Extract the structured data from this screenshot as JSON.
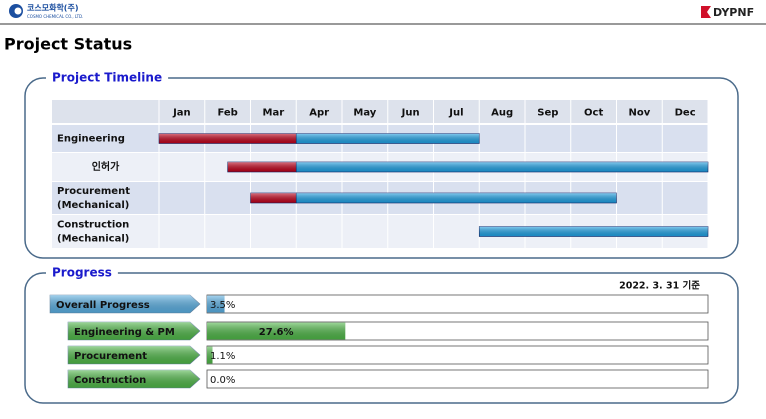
{
  "header": {
    "company": "코스모화학(주)",
    "company_en": "COSMO CHEMICAL CO., LTD.",
    "brand": "DYPNF"
  },
  "title": "Project Status",
  "timeline": {
    "heading": "Project Timeline",
    "months": [
      "Jan",
      "Feb",
      "Mar",
      "Apr",
      "May",
      "Jun",
      "Jul",
      "Aug",
      "Sep",
      "Oct",
      "Nov",
      "Dec"
    ],
    "rows": [
      {
        "label": [
          "Engineering"
        ],
        "bars": [
          {
            "start": 0,
            "end": 3,
            "color": "#c0001a"
          },
          {
            "start": 3,
            "end": 7,
            "color": "#1ea2e6"
          }
        ]
      },
      {
        "label": [
          "인허가"
        ],
        "bars": [
          {
            "start": 1.5,
            "end": 3,
            "color": "#c0001a"
          },
          {
            "start": 3,
            "end": 12,
            "color": "#1ea2e6"
          }
        ]
      },
      {
        "label": [
          "Procurement",
          "(Mechanical)"
        ],
        "bars": [
          {
            "start": 2,
            "end": 3,
            "color": "#c0001a"
          },
          {
            "start": 3,
            "end": 10,
            "color": "#1ea2e6"
          }
        ]
      },
      {
        "label": [
          "Construction",
          "(Mechanical)"
        ],
        "bars": [
          {
            "start": 7,
            "end": 12,
            "color": "#1ea2e6"
          }
        ]
      }
    ]
  },
  "progress": {
    "heading": "Progress",
    "as_of": "2022. 3. 31 기준",
    "scale": [
      0,
      100
    ],
    "items": [
      {
        "name": "Overall Progress",
        "value": 3.5,
        "value_label": "3.5%",
        "color": "#5ab0e4"
      },
      {
        "name": "Engineering & PM",
        "value": 27.6,
        "value_label": "27.6%",
        "color": "#4fb848"
      },
      {
        "name": "Procurement",
        "value": 1.1,
        "value_label": "1.1%",
        "color": "#4fb848"
      },
      {
        "name": "Construction",
        "value": 0,
        "value_label": "0.0%",
        "color": "#4fb848"
      }
    ]
  }
}
